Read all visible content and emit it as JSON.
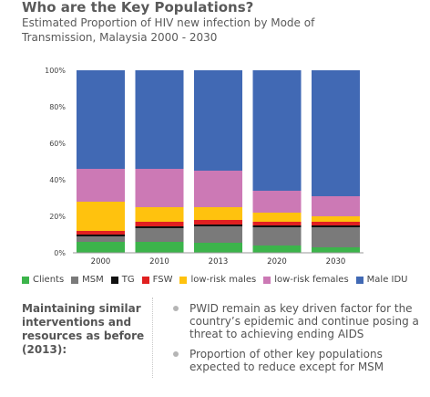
{
  "header": {
    "title": "Who are the Key Populations?",
    "subtitle": "Estimated Proportion of HIV new infection by Mode of Transmission, Malaysia 2000 - 2030"
  },
  "chart_data": {
    "type": "bar",
    "stacked": true,
    "categories": [
      "2000",
      "2010",
      "2013",
      "2020",
      "2030"
    ],
    "y_ticks": [
      "0%",
      "20%",
      "40%",
      "60%",
      "80%",
      "100%"
    ],
    "ylim": [
      0,
      100
    ],
    "grid": false,
    "legend_position": "bottom",
    "series": [
      {
        "name": "Clients",
        "color": "#3cb44b",
        "values": [
          6,
          6,
          5.5,
          4,
          3
        ]
      },
      {
        "name": "MSM",
        "color": "#7a7a7a",
        "values": [
          3,
          7.5,
          9,
          10,
          11
        ]
      },
      {
        "name": "TG",
        "color": "#111111",
        "values": [
          1,
          1,
          1,
          1,
          1
        ]
      },
      {
        "name": "FSW",
        "color": "#e02020",
        "values": [
          2,
          2.5,
          2.5,
          2,
          2
        ]
      },
      {
        "name": "low-risk males",
        "color": "#ffc20e",
        "values": [
          16,
          8,
          7,
          5,
          3
        ]
      },
      {
        "name": "low-risk females",
        "color": "#cc79b5",
        "values": [
          18,
          21,
          20,
          12,
          11
        ]
      },
      {
        "name": "Male IDU",
        "color": "#4169b4",
        "values": [
          54,
          54,
          55,
          66,
          69
        ]
      }
    ]
  },
  "note": {
    "left_text": "Maintaining similar interventions and resources as before (2013):",
    "bullets": [
      "PWID remain as key driven factor for the country’s epidemic and continue posing a threat to achieving ending AIDS",
      "Proportion of other key populations expected to reduce except for MSM"
    ]
  }
}
